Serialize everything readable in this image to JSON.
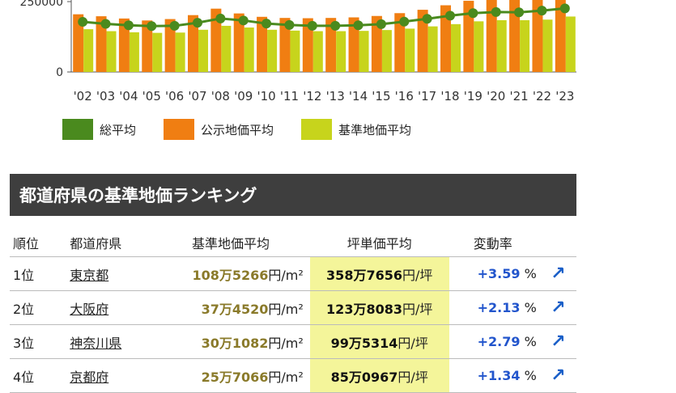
{
  "chart_data": {
    "type": "bar",
    "categories": [
      "'02",
      "'03",
      "'04",
      "'05",
      "'06",
      "'07",
      "'08",
      "'09",
      "'10",
      "'11",
      "'12",
      "'13",
      "'14",
      "'15",
      "'16",
      "'17",
      "'18",
      "'19",
      "'20",
      "'21",
      "'22",
      "'23"
    ],
    "ylim": [
      0,
      280000
    ],
    "y_ticks": [
      0,
      250000
    ],
    "y_tick_labels": [
      "0",
      "250000"
    ],
    "series": [
      {
        "name": "総平均",
        "kind": "line",
        "color": "#4a8a1e",
        "values": [
          178000,
          171000,
          166000,
          163000,
          164000,
          175000,
          190000,
          183000,
          172000,
          167000,
          164000,
          164000,
          166000,
          170000,
          179000,
          189000,
          200000,
          209000,
          213000,
          212000,
          218000,
          226000
        ]
      },
      {
        "name": "公示地価平均",
        "kind": "bar",
        "color": "#f07e12",
        "values": [
          205000,
          198000,
          190000,
          183000,
          188000,
          202000,
          225000,
          208000,
          196000,
          192000,
          191000,
          192000,
          194000,
          199000,
          209000,
          221000,
          237000,
          253000,
          263000,
          260000,
          260000,
          267000
        ]
      },
      {
        "name": "基準地価平均",
        "kind": "bar",
        "color": "#c7d41c",
        "values": [
          152000,
          145000,
          141000,
          139000,
          140000,
          150000,
          164000,
          158000,
          150000,
          147000,
          145000,
          145000,
          146000,
          149000,
          154000,
          162000,
          170000,
          180000,
          184000,
          184000,
          186000,
          197000
        ]
      }
    ],
    "legend_position": "bottom",
    "grid": false
  },
  "ranking": {
    "title": "都道府県の基準地価ランキング",
    "headers": [
      "順位",
      "都道府県",
      "基準地価平均",
      "坪単価平均",
      "変動率"
    ],
    "rows": [
      {
        "rank": "1位",
        "pref": "東京都",
        "land_value": "108万5266",
        "land_unit": "円/m²",
        "tsubo_value": "358万7656",
        "tsubo_unit": "円/坪",
        "change_value": "+3.59",
        "change_unit": "%"
      },
      {
        "rank": "2位",
        "pref": "大阪府",
        "land_value": "37万4520",
        "land_unit": "円/m²",
        "tsubo_value": "123万8083",
        "tsubo_unit": "円/坪",
        "change_value": "+2.13",
        "change_unit": "%"
      },
      {
        "rank": "3位",
        "pref": "神奈川県",
        "land_value": "30万1082",
        "land_unit": "円/m²",
        "tsubo_value": "99万5314",
        "tsubo_unit": "円/坪",
        "change_value": "+2.79",
        "change_unit": "%"
      },
      {
        "rank": "4位",
        "pref": "京都府",
        "land_value": "25万7066",
        "land_unit": "円/m²",
        "tsubo_value": "85万0967",
        "tsubo_unit": "円/坪",
        "change_value": "+1.34",
        "change_unit": "%"
      }
    ],
    "arrow_icon": "trend-up-arrow-icon"
  }
}
